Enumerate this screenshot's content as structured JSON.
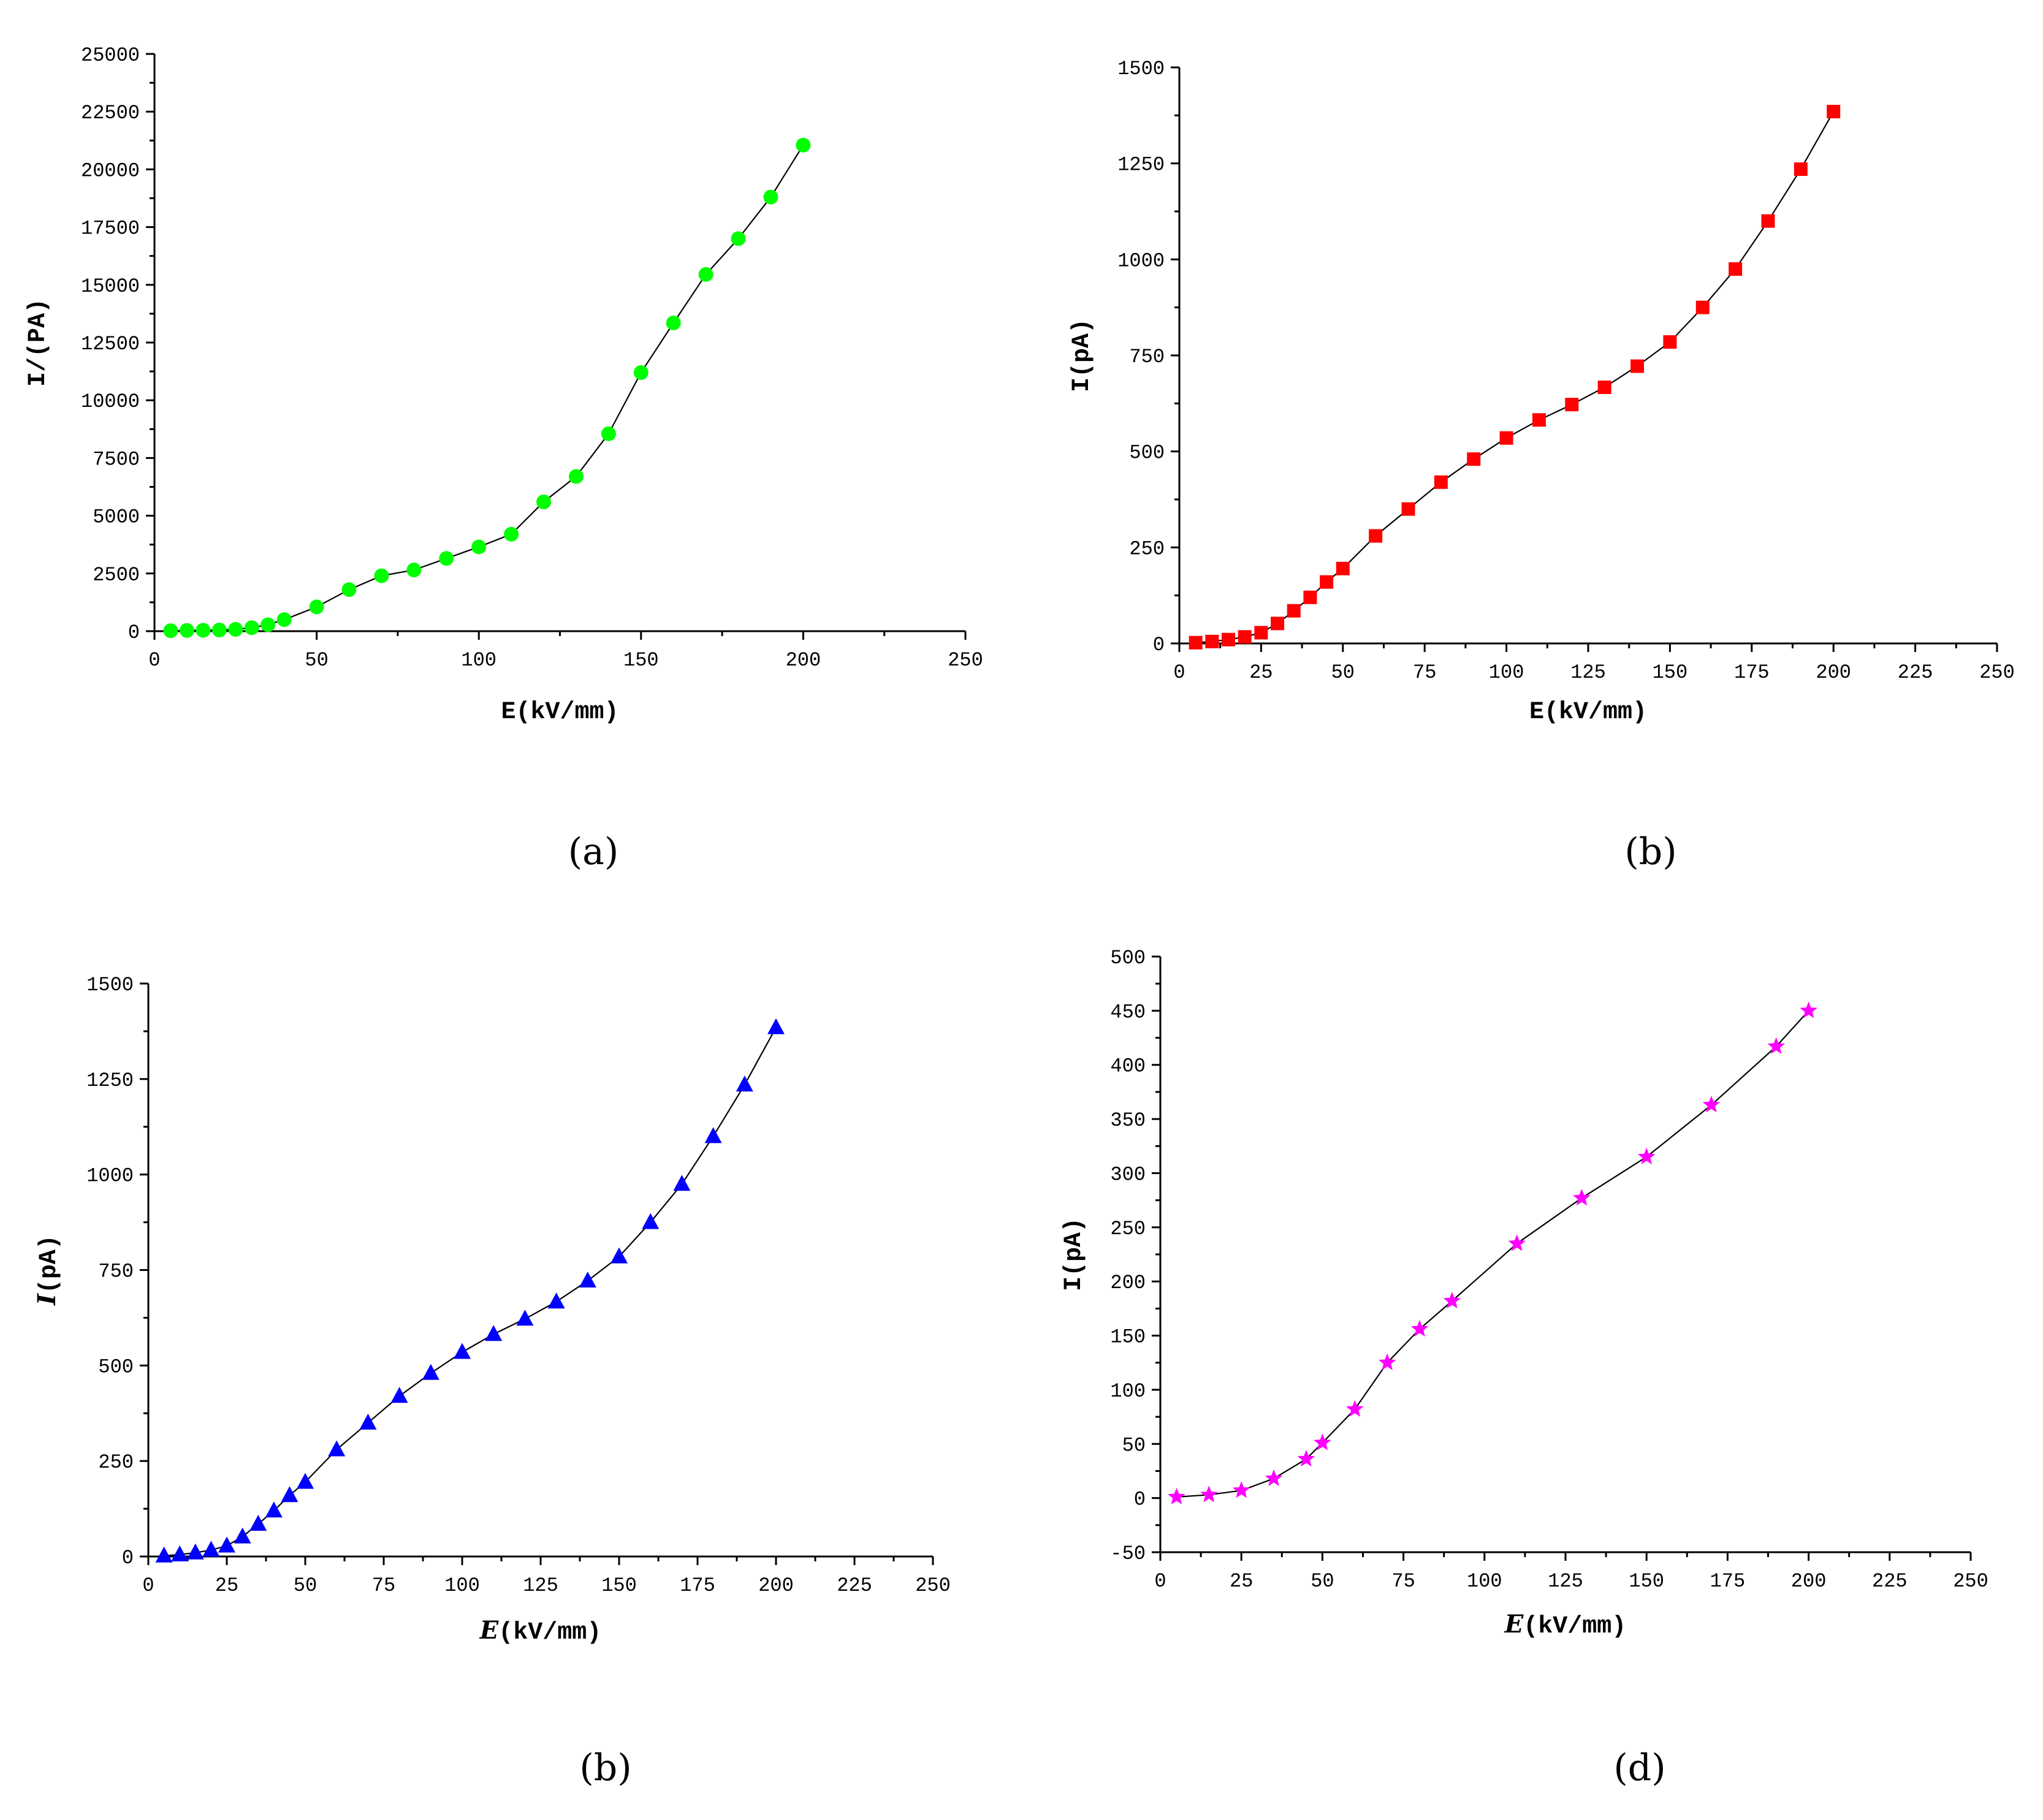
{
  "chart_data": [
    {
      "type": "scatter",
      "caption": "(a)",
      "xlabel": "E(kV/mm)",
      "ylabel": "I/(PA)",
      "xlim": [
        0,
        250
      ],
      "ylim": [
        0,
        25000
      ],
      "xticks": [
        "0",
        "50",
        "100",
        "150",
        "200",
        "250"
      ],
      "yticks": [
        "0",
        "2500",
        "5000",
        "7500",
        "10000",
        "12500",
        "15000",
        "17500",
        "20000",
        "22500",
        "25000"
      ],
      "marker": "circle",
      "color": "#00ff00",
      "series": [
        {
          "name": "I",
          "x": [
            5,
            10,
            15,
            20,
            25,
            30,
            35,
            40,
            50,
            60,
            70,
            80,
            90,
            100,
            110,
            120,
            130,
            140,
            150,
            160,
            170,
            180,
            190,
            200
          ],
          "y": [
            20,
            30,
            40,
            50,
            80,
            150,
            280,
            500,
            1050,
            1800,
            2400,
            2650,
            3150,
            3650,
            4200,
            5600,
            6700,
            8550,
            11200,
            13350,
            15450,
            17000,
            18800,
            21050
          ]
        }
      ]
    },
    {
      "type": "scatter",
      "caption": "(b)",
      "xlabel": "E(kV/mm)",
      "ylabel": "I(pA)",
      "xlim": [
        0,
        250
      ],
      "ylim": [
        0,
        1500
      ],
      "xticks": [
        "0",
        "25",
        "50",
        "75",
        "100",
        "125",
        "150",
        "175",
        "200",
        "225",
        "250"
      ],
      "yticks": [
        "0",
        "250",
        "500",
        "750",
        "1000",
        "1250",
        "1500"
      ],
      "marker": "square",
      "color": "#ff0000",
      "series": [
        {
          "name": "I",
          "x": [
            5,
            10,
            15,
            20,
            25,
            30,
            35,
            40,
            45,
            50,
            60,
            70,
            80,
            90,
            100,
            110,
            120,
            130,
            140,
            150,
            160,
            170,
            180,
            190,
            200
          ],
          "y": [
            2,
            5,
            10,
            17,
            28,
            52,
            85,
            120,
            160,
            195,
            280,
            350,
            420,
            480,
            535,
            582,
            622,
            667,
            722,
            785,
            875,
            975,
            1100,
            1235,
            1385
          ]
        }
      ]
    },
    {
      "type": "scatter",
      "caption": "(b)",
      "xlabel": "E(kV/mm)",
      "ylabel": "I(pA)",
      "xlim": [
        0,
        250
      ],
      "ylim": [
        0,
        1500
      ],
      "xticks": [
        "0",
        "25",
        "50",
        "75",
        "100",
        "125",
        "150",
        "175",
        "200",
        "225",
        "250"
      ],
      "yticks": [
        "0",
        "250",
        "500",
        "750",
        "1000",
        "1250",
        "1500"
      ],
      "marker": "triangle",
      "color": "#0000ff",
      "series": [
        {
          "name": "I",
          "x": [
            5,
            10,
            15,
            20,
            25,
            30,
            35,
            40,
            45,
            50,
            60,
            70,
            80,
            90,
            100,
            110,
            120,
            130,
            140,
            150,
            160,
            170,
            180,
            190,
            200
          ],
          "y": [
            2,
            5,
            10,
            17,
            28,
            52,
            85,
            120,
            160,
            195,
            280,
            350,
            420,
            480,
            535,
            582,
            622,
            667,
            722,
            785,
            875,
            975,
            1100,
            1235,
            1385
          ]
        }
      ]
    },
    {
      "type": "scatter",
      "caption": "(d)",
      "xlabel": "E(kV/mm)",
      "ylabel": "I(pA)",
      "xlim": [
        0,
        250
      ],
      "ylim": [
        -50,
        500
      ],
      "xticks": [
        "0",
        "25",
        "50",
        "75",
        "100",
        "125",
        "150",
        "175",
        "200",
        "225",
        "250"
      ],
      "yticks": [
        "-50",
        "0",
        "50",
        "100",
        "150",
        "200",
        "250",
        "300",
        "350",
        "400",
        "450",
        "500"
      ],
      "marker": "star",
      "color": "#ff00ff",
      "series": [
        {
          "name": "I",
          "x": [
            5,
            15,
            25,
            35,
            45,
            50,
            60,
            70,
            80,
            90,
            110,
            130,
            150,
            170,
            190,
            200
          ],
          "y": [
            1,
            3,
            7,
            18,
            36,
            51,
            82,
            125,
            156,
            182,
            235,
            277,
            315,
            363,
            417,
            450
          ]
        }
      ]
    }
  ]
}
